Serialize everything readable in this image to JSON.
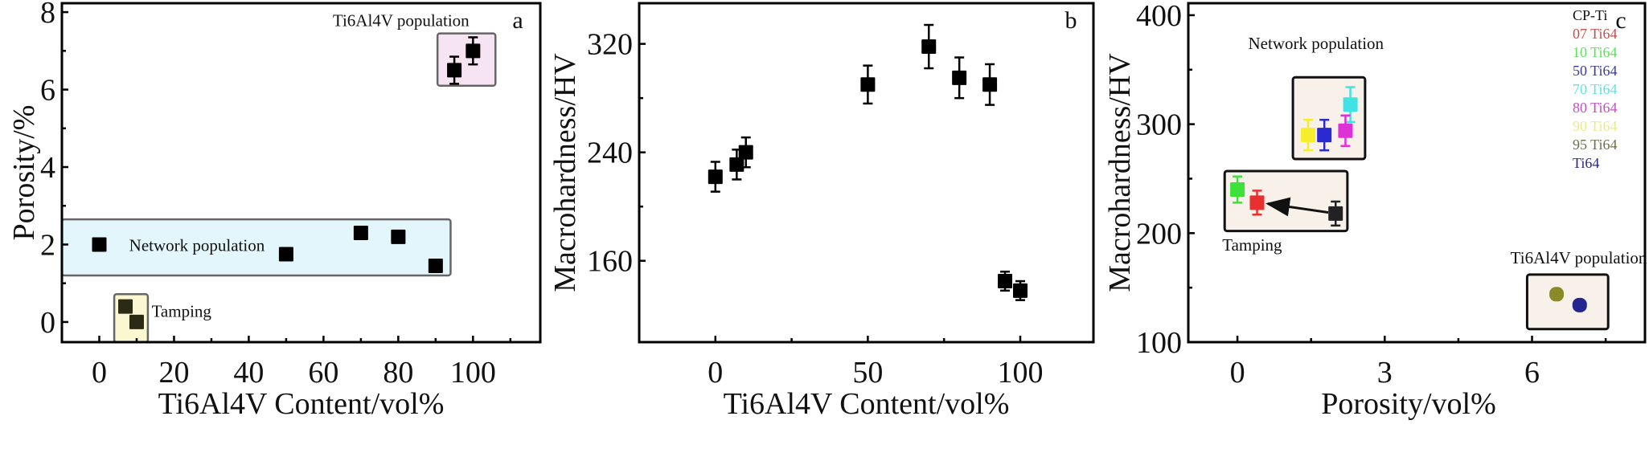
{
  "chart_data": [
    {
      "type": "scatter",
      "panel_label": "a",
      "xlabel": "Ti6Al4V Content/vol%",
      "ylabel": "Porosity/%",
      "xlim": [
        -10,
        118
      ],
      "ylim": [
        -0.52,
        8.23
      ],
      "xticks": [
        0,
        20,
        40,
        60,
        80,
        100
      ],
      "yticks": [
        0,
        2,
        4,
        6,
        8
      ],
      "x": [
        0,
        7,
        10,
        50,
        70,
        80,
        90,
        95,
        100
      ],
      "y": [
        2.0,
        0.4,
        0.0,
        1.75,
        2.3,
        2.2,
        1.45,
        6.5,
        7.0
      ],
      "yerr": [
        0,
        0,
        0,
        0,
        0,
        0,
        0,
        0.35,
        0.35
      ],
      "regions": [
        {
          "label": "Network population",
          "x": [
            -10,
            94
          ],
          "y": [
            1.2,
            2.65
          ],
          "color": "#e3f6fb"
        },
        {
          "label": "Tamping",
          "x": [
            4,
            13
          ],
          "y": [
            -0.52,
            0.72
          ],
          "color": "#fbf7d0"
        },
        {
          "label": "Ti6Al4V population",
          "x": [
            90.5,
            106
          ],
          "y": [
            6.1,
            7.45
          ],
          "color": "#f6e4f3"
        }
      ]
    },
    {
      "type": "scatter",
      "panel_label": "b",
      "xlabel": "Ti6Al4V Content/vol%",
      "ylabel": "Macrohardness/HV",
      "xlim": [
        -25,
        124
      ],
      "ylim": [
        100,
        350
      ],
      "xticks": [
        0,
        50,
        100
      ],
      "yticks": [
        160,
        240,
        320
      ],
      "x": [
        0,
        7,
        10,
        50,
        70,
        80,
        90,
        95,
        100
      ],
      "y": [
        222,
        231,
        240,
        290,
        318,
        295,
        290,
        145,
        138
      ],
      "yerr": [
        11,
        11,
        11,
        14,
        16,
        15,
        15,
        7,
        7
      ]
    },
    {
      "type": "scatter",
      "panel_label": "c",
      "xlabel": "Porosity/vol%",
      "ylabel": "Macrohardness/HV",
      "xlim": [
        -1.0,
        8.3
      ],
      "ylim": [
        100,
        411
      ],
      "xticks": [
        0,
        3,
        6
      ],
      "yticks": [
        100,
        200,
        300,
        400
      ],
      "legend_position": "top-right",
      "series": [
        {
          "name": "CP-Ti",
          "x": 2.0,
          "y": 218,
          "yerr": 11,
          "color": "#222222"
        },
        {
          "name": "07 Ti64",
          "x": 0.4,
          "y": 228,
          "yerr": 11,
          "color": "#e8302e"
        },
        {
          "name": "10 Ti64",
          "x": 0.0,
          "y": 240,
          "yerr": 12,
          "color": "#3ee03a"
        },
        {
          "name": "50 Ti64",
          "x": 1.77,
          "y": 290,
          "yerr": 14,
          "color": "#2a2ad0"
        },
        {
          "name": "70 Ti64",
          "x": 2.3,
          "y": 318,
          "yerr": 16,
          "color": "#3fe3e3"
        },
        {
          "name": "80 Ti64",
          "x": 2.2,
          "y": 294,
          "yerr": 14,
          "color": "#e030d8"
        },
        {
          "name": "90 Ti64",
          "x": 1.44,
          "y": 290,
          "yerr": 14,
          "color": "#f5ee2a"
        },
        {
          "name": "95 Ti64",
          "x": 6.5,
          "y": 144,
          "yerr": 0,
          "color": "#8a8a2a"
        },
        {
          "name": "Ti64",
          "x": 6.97,
          "y": 134,
          "yerr": 0,
          "color": "#25258f"
        }
      ],
      "legend_colors": [
        "#111111",
        "#c0504d",
        "#5ee05a",
        "#3b3b9a",
        "#5ee3e3",
        "#c050c0",
        "#eee88a",
        "#6e6e4a",
        "#25258f"
      ],
      "arrow": {
        "from": [
          1.85,
          219
        ],
        "to": [
          0.62,
          227
        ]
      },
      "regions": [
        {
          "label": "Network population",
          "x": [
            1.13,
            2.6
          ],
          "y": [
            268,
            343
          ],
          "color": "#f7f1ea"
        },
        {
          "label": "Tamping",
          "x": [
            -0.26,
            2.24
          ],
          "y": [
            202,
            257
          ],
          "color": "#f7f1ea"
        },
        {
          "label": "Ti6Al4V population",
          "x": [
            5.9,
            7.55
          ],
          "y": [
            112,
            162
          ],
          "color": "#f7f1ea"
        }
      ]
    }
  ]
}
